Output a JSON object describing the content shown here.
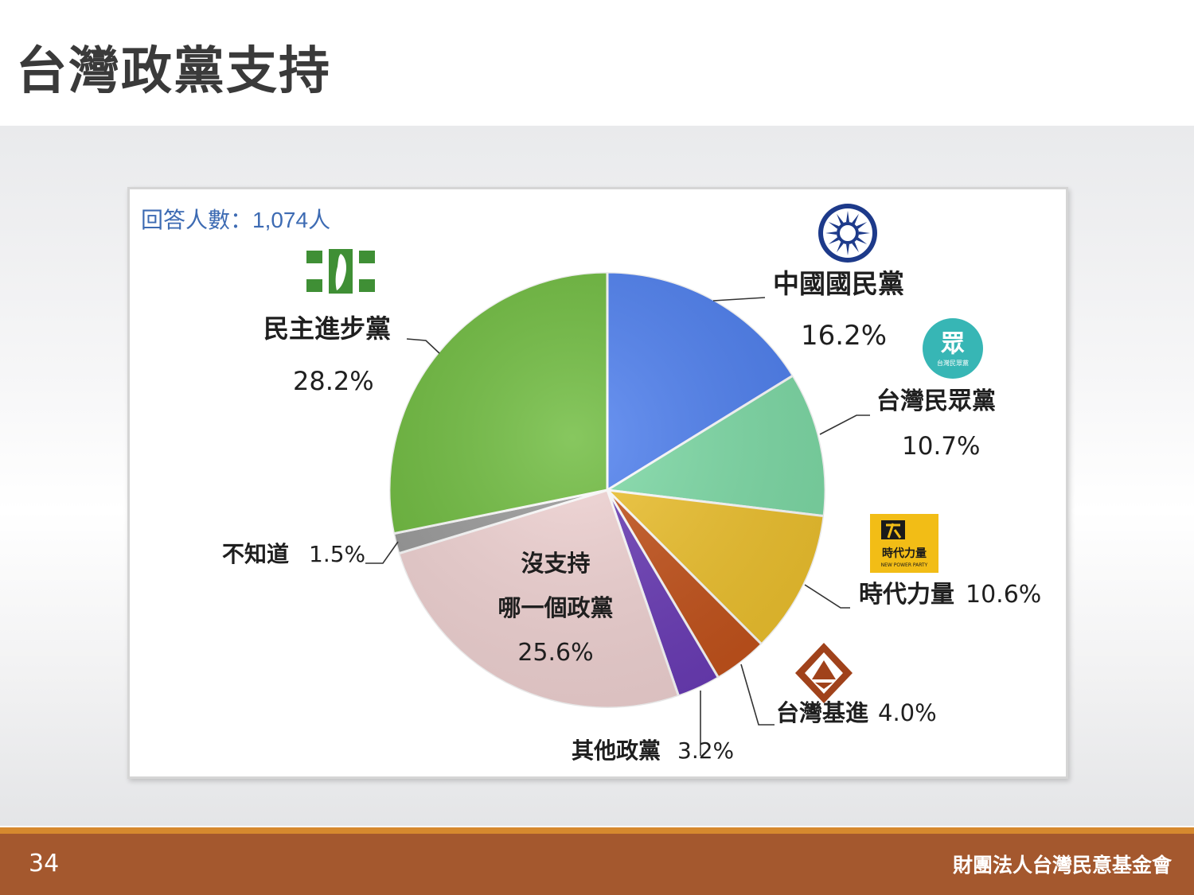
{
  "slide": {
    "title": "台灣政黨支持",
    "page_number": "34",
    "organization": "財團法人台灣民意基金會"
  },
  "colors": {
    "footer_bar": "#a4582e",
    "footer_accent": "#d6892e",
    "sample_note": "#3d6bb3"
  },
  "chart_data": {
    "type": "pie",
    "annotation": "回答人數：1,074人",
    "unit": "%",
    "slices": [
      {
        "label": "中國國民黨",
        "value_label": "16.2%",
        "value": 16.2,
        "color": "#4d7ff0",
        "logo": "kmt-sun-emblem"
      },
      {
        "label": "台灣民眾黨",
        "value_label": "10.7%",
        "value": 10.7,
        "color": "#7ddba6",
        "logo": "tpp-circle-emblem"
      },
      {
        "label": "時代力量",
        "value_label": "10.6%",
        "value": 10.6,
        "color": "#efc22d",
        "logo": "npp-square-emblem"
      },
      {
        "label": "台灣基進",
        "value_label": "4.0%",
        "value": 4.0,
        "color": "#c4521a",
        "logo": "tsp-diamond-emblem"
      },
      {
        "label": "其他政黨",
        "value_label": "3.2%",
        "value": 3.2,
        "color": "#6a3bb7"
      },
      {
        "label": "沒支持\n哪一個政黨",
        "value_label": "25.6%",
        "value": 25.6,
        "color": "#f2d4d4"
      },
      {
        "label": "不知道",
        "value_label": "1.5%",
        "value": 1.5,
        "color": "#999999"
      },
      {
        "label": "民主進步黨",
        "value_label": "28.2%",
        "value": 28.2,
        "color": "#6dbb3c",
        "logo": "dpp-flag-emblem"
      }
    ],
    "logo_text": {
      "tpp": "眾",
      "tpp_small": "台灣民眾黨",
      "npp": "時代力量",
      "npp_small": "NEW POWER PARTY"
    }
  }
}
